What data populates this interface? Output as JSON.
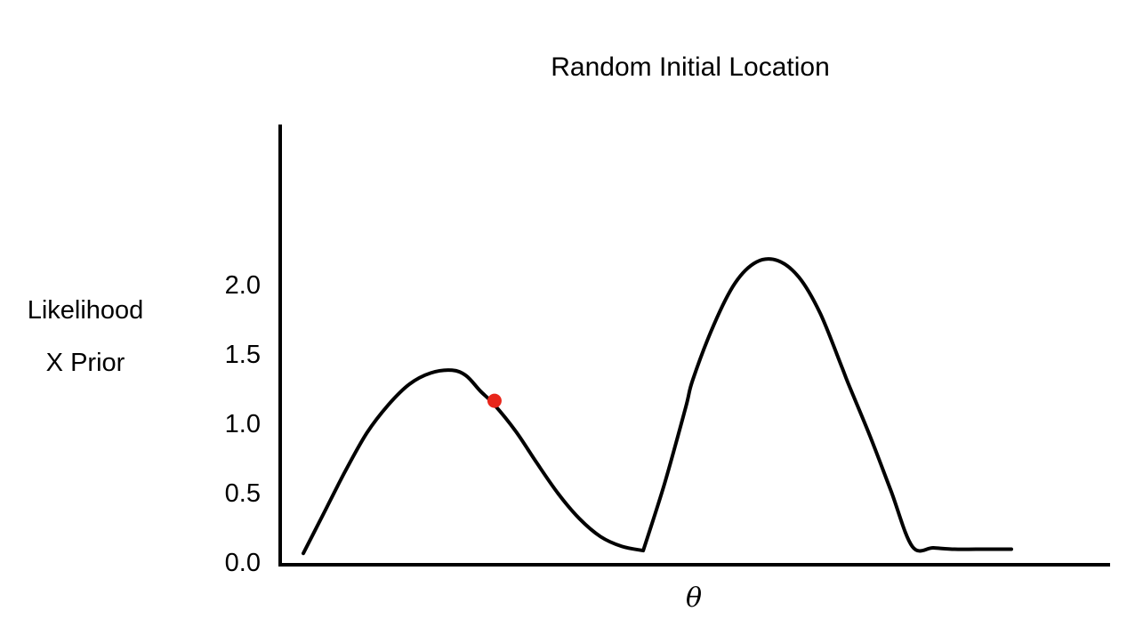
{
  "chart_data": {
    "type": "line",
    "title": "Random Initial Location",
    "xlabel": "θ",
    "ylabel_lines": [
      "Likelihood",
      "X Prior"
    ],
    "ylim": [
      0,
      2.0
    ],
    "yticks": [
      "0.0",
      "0.5",
      "1.0",
      "1.5",
      "2.0"
    ],
    "ytick_values": [
      0.0,
      0.5,
      1.0,
      1.5,
      2.0
    ],
    "x_ticks_shown": false,
    "grid": false,
    "legend": "none",
    "series": [
      {
        "color": "#000000",
        "x": [
          0.0,
          0.03,
          0.06,
          0.09,
          0.12,
          0.15,
          0.18,
          0.21,
          0.23,
          0.25,
          0.27,
          0.3,
          0.33,
          0.36,
          0.39,
          0.42,
          0.45,
          0.48,
          0.51,
          0.54,
          0.55,
          0.58,
          0.61,
          0.64,
          0.67,
          0.7,
          0.73,
          0.76,
          0.77,
          0.8,
          0.83,
          0.86,
          0.89,
          0.92,
          0.95,
          0.98,
          1.0
        ],
        "y": [
          0.05,
          0.35,
          0.65,
          0.92,
          1.12,
          1.27,
          1.35,
          1.37,
          1.33,
          1.22,
          1.12,
          0.93,
          0.7,
          0.48,
          0.3,
          0.17,
          0.1,
          0.07,
          0.55,
          1.1,
          1.3,
          1.7,
          2.0,
          2.15,
          2.16,
          2.04,
          1.78,
          1.4,
          1.27,
          0.9,
          0.5,
          0.1,
          0.09,
          0.08,
          0.08,
          0.08,
          0.08
        ]
      }
    ],
    "highlight_point": {
      "x": 0.27,
      "y": 1.15,
      "color": "#e8261b"
    }
  }
}
